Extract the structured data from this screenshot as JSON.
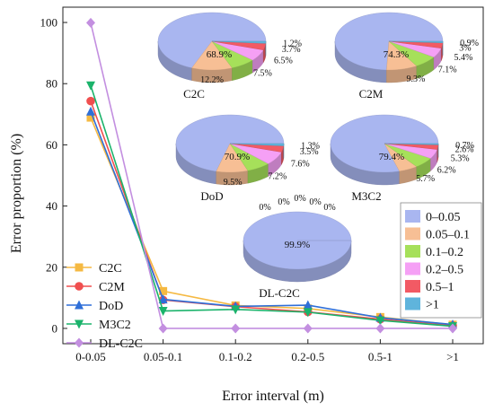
{
  "chart_data": [
    {
      "type": "line",
      "xlabel": "Error interval (m)",
      "ylabel": "Error proportion (%)",
      "categories": [
        "0-0.05",
        "0.05-0.1",
        "0.1-0.2",
        "0.2-0.5",
        "0.5-1",
        ">1"
      ],
      "ylim": [
        -5,
        105
      ],
      "yticks": [
        "0",
        "20",
        "40",
        "60",
        "80",
        "100"
      ],
      "legend_position": "bottom-left",
      "series": [
        {
          "name": "C2C",
          "color": "#f5b942",
          "marker": "square",
          "values": [
            68.9,
            12.2,
            7.5,
            6.5,
            3.7,
            1.2
          ]
        },
        {
          "name": "C2M",
          "color": "#f04f4f",
          "marker": "circle",
          "values": [
            74.3,
            9.3,
            7.1,
            5.4,
            3.0,
            0.9
          ]
        },
        {
          "name": "DoD",
          "color": "#2f6fd8",
          "marker": "triangle",
          "values": [
            70.9,
            9.5,
            7.2,
            7.6,
            3.5,
            1.3
          ]
        },
        {
          "name": "M3C2",
          "color": "#1bb36b",
          "marker": "triangle-down",
          "values": [
            79.4,
            5.7,
            6.2,
            5.3,
            2.6,
            0.7
          ]
        },
        {
          "name": "DL-C2C",
          "color": "#c38fe0",
          "marker": "diamond",
          "values": [
            99.9,
            0,
            0,
            0,
            0,
            0
          ]
        }
      ]
    },
    {
      "type": "pie",
      "legend": [
        "0–0.05",
        "0.05–0.1",
        "0.1–0.2",
        "0.2–0.5",
        "0.5–1",
        ">1"
      ],
      "slice_colors": [
        "#a9b6f0",
        "#f7bf95",
        "#a6e05a",
        "#f5a0f5",
        "#f25a64",
        "#5fb4dc"
      ],
      "pies": [
        {
          "title": "C2C",
          "values": [
            68.9,
            12.2,
            7.5,
            6.5,
            3.7,
            1.2
          ],
          "labels": [
            "68.9%",
            "12.2%",
            "7.5%",
            "6.5%",
            "3.7%",
            "1.2%"
          ]
        },
        {
          "title": "C2M",
          "values": [
            74.3,
            9.3,
            7.1,
            5.4,
            3.0,
            0.9
          ],
          "labels": [
            "74.3%",
            "9.3%",
            "7.1%",
            "5.4%",
            "3%",
            "0.9%"
          ]
        },
        {
          "title": "DoD",
          "values": [
            70.9,
            9.5,
            7.2,
            7.6,
            3.5,
            1.3
          ],
          "labels": [
            "70.9%",
            "9.5%",
            "7.2%",
            "7.6%",
            "3.5%",
            "1.3%"
          ]
        },
        {
          "title": "M3C2",
          "values": [
            79.4,
            5.7,
            6.2,
            5.3,
            2.6,
            0.7
          ],
          "labels": [
            "79.4%",
            "5.7%",
            "6.2%",
            "5.3%",
            "2.6%",
            "0.7%"
          ]
        },
        {
          "title": "DL-C2C",
          "values": [
            99.9,
            0,
            0,
            0,
            0,
            0
          ],
          "labels": [
            "99.9%",
            "0%",
            "0%",
            "0%",
            "0%",
            "0%"
          ]
        }
      ]
    }
  ]
}
